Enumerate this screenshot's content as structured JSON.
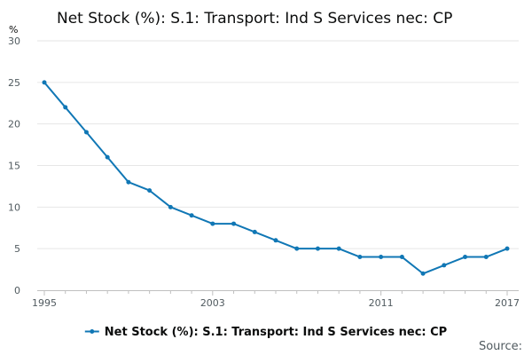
{
  "chart_data": {
    "type": "line",
    "title": "Net Stock (%): S.1: Transport: Ind S Services nec: CP",
    "y_unit": "%",
    "x": [
      1995,
      1996,
      1997,
      1998,
      1999,
      2000,
      2001,
      2002,
      2003,
      2004,
      2005,
      2006,
      2007,
      2008,
      2009,
      2010,
      2011,
      2012,
      2013,
      2014,
      2015,
      2016,
      2017
    ],
    "series": [
      {
        "name": "Net Stock (%): S.1: Transport: Ind S Services nec: CP",
        "values": [
          25,
          22,
          19,
          16,
          13,
          12,
          10,
          9,
          8,
          8,
          7,
          6,
          5,
          5,
          5,
          4,
          4,
          4,
          2,
          3,
          4,
          4,
          5
        ]
      }
    ],
    "xlim": [
      1995,
      2017
    ],
    "ylim": [
      0,
      30
    ],
    "y_ticks": [
      0,
      5,
      10,
      15,
      20,
      25,
      30
    ],
    "x_tick_labels": [
      "1995",
      "2003",
      "2011",
      "2017"
    ],
    "grid": "horizontal",
    "legend_position": "bottom",
    "line_color": "#1077b5"
  },
  "source_label": "Source:"
}
